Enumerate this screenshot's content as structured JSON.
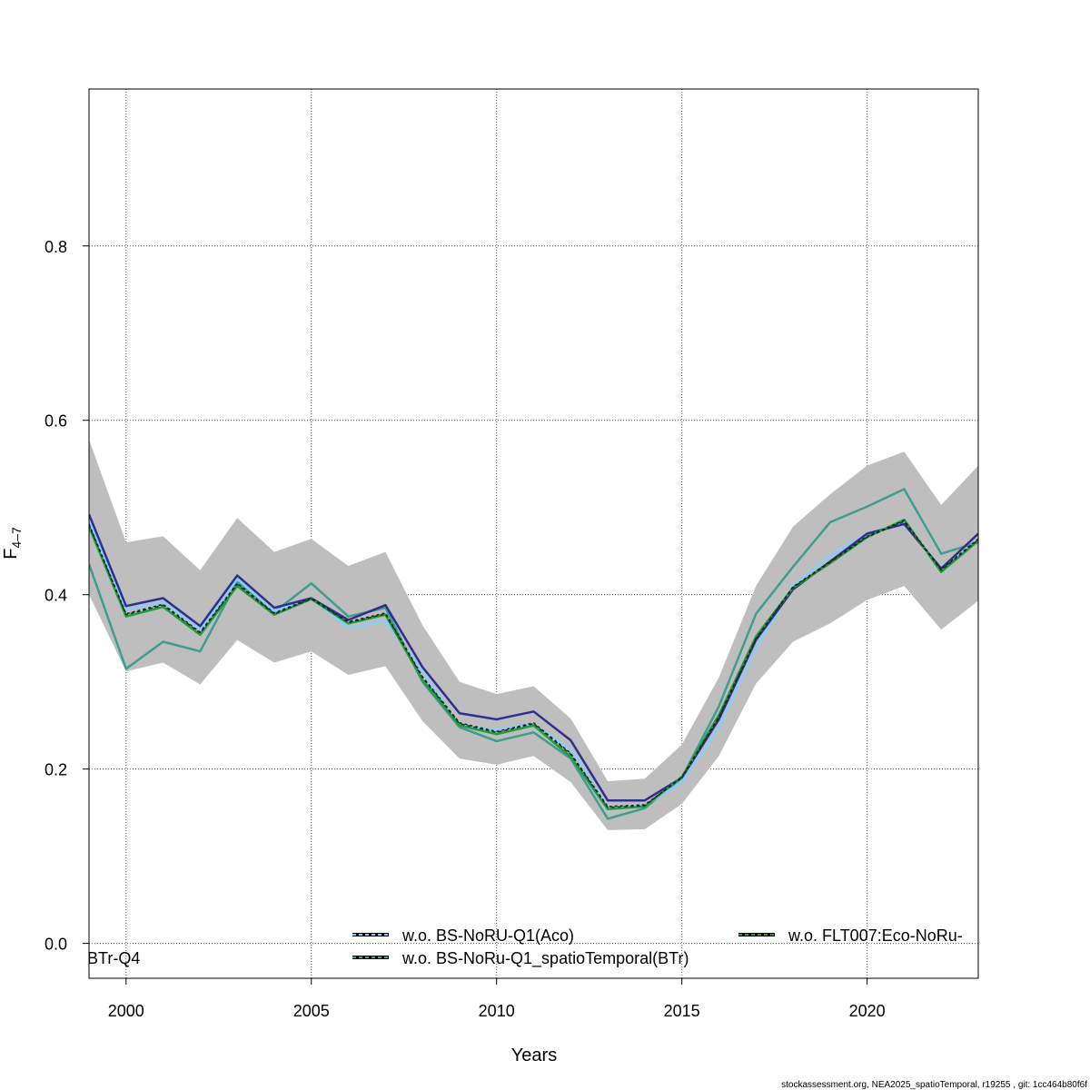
{
  "chart_data": {
    "type": "line",
    "xlabel": "Years",
    "ylabel": "F",
    "ylabel_sub": "4–7",
    "xlim": [
      1999,
      2023
    ],
    "ylim": [
      -0.04,
      0.98
    ],
    "grid": true,
    "x_ticks": [
      2000,
      2005,
      2010,
      2015,
      2020
    ],
    "y_ticks": [
      0.0,
      0.2,
      0.4,
      0.6,
      0.8
    ],
    "y_tick_labels": [
      "0.0",
      "0.2",
      "0.4",
      "0.6",
      "0.8"
    ],
    "x": [
      1999,
      2000,
      2001,
      2002,
      2003,
      2004,
      2005,
      2006,
      2007,
      2008,
      2009,
      2010,
      2011,
      2012,
      2013,
      2014,
      2015,
      2016,
      2017,
      2018,
      2019,
      2020,
      2021,
      2022,
      2023
    ],
    "band": {
      "color": "#bebebe",
      "upper": [
        0.578,
        0.46,
        0.467,
        0.428,
        0.488,
        0.449,
        0.464,
        0.433,
        0.449,
        0.365,
        0.3,
        0.286,
        0.295,
        0.258,
        0.186,
        0.189,
        0.228,
        0.305,
        0.41,
        0.478,
        0.515,
        0.548,
        0.564,
        0.503,
        0.548
      ],
      "lower": [
        0.4,
        0.312,
        0.322,
        0.297,
        0.348,
        0.322,
        0.335,
        0.308,
        0.318,
        0.255,
        0.212,
        0.205,
        0.215,
        0.185,
        0.13,
        0.131,
        0.16,
        0.215,
        0.298,
        0.346,
        0.367,
        0.394,
        0.41,
        0.36,
        0.393
      ]
    },
    "series": [
      {
        "color": "#3d9e8e",
        "dash": "",
        "values": [
          0.435,
          0.315,
          0.346,
          0.335,
          0.415,
          0.38,
          0.413,
          0.375,
          0.385,
          0.3,
          0.248,
          0.232,
          0.242,
          0.212,
          0.143,
          0.155,
          0.19,
          0.272,
          0.378,
          0.432,
          0.483,
          0.501,
          0.521,
          0.447,
          0.46
        ]
      },
      {
        "color": "#87cefa",
        "dash": "",
        "values": [
          0.485,
          0.382,
          0.392,
          0.36,
          0.418,
          0.381,
          0.396,
          0.362,
          0.37,
          0.312,
          0.25,
          0.245,
          0.252,
          0.222,
          0.156,
          0.158,
          0.185,
          0.248,
          0.338,
          0.41,
          0.445,
          0.47,
          0.483,
          0.43,
          0.462
        ]
      },
      {
        "color": "#2e2e8f",
        "dash": "",
        "values": [
          0.492,
          0.387,
          0.396,
          0.364,
          0.422,
          0.385,
          0.396,
          0.371,
          0.388,
          0.317,
          0.264,
          0.257,
          0.266,
          0.233,
          0.164,
          0.164,
          0.19,
          0.257,
          0.348,
          0.406,
          0.438,
          0.47,
          0.481,
          0.43,
          0.47
        ]
      },
      {
        "color": "#1f9e3f",
        "dash": "",
        "values": [
          0.478,
          0.375,
          0.386,
          0.354,
          0.41,
          0.377,
          0.395,
          0.367,
          0.377,
          0.302,
          0.25,
          0.24,
          0.25,
          0.214,
          0.154,
          0.157,
          0.191,
          0.262,
          0.352,
          0.408,
          0.436,
          0.466,
          0.486,
          0.426,
          0.462
        ]
      },
      {
        "color": "#0f3d10",
        "dash": "4,3",
        "values": [
          0.48,
          0.377,
          0.388,
          0.356,
          0.412,
          0.378,
          0.395,
          0.368,
          0.378,
          0.305,
          0.252,
          0.242,
          0.252,
          0.217,
          0.156,
          0.158,
          0.191,
          0.26,
          0.35,
          0.408,
          0.437,
          0.466,
          0.484,
          0.428,
          0.463
        ]
      },
      {
        "color": "#1f1f1f",
        "dash": "3,3",
        "values": [
          0.481,
          0.378,
          0.389,
          0.357,
          0.413,
          0.379,
          0.396,
          0.369,
          0.379,
          0.306,
          0.253,
          0.243,
          0.253,
          0.218,
          0.157,
          0.159,
          0.19,
          0.259,
          0.349,
          0.409,
          0.438,
          0.467,
          0.485,
          0.429,
          0.464
        ]
      }
    ],
    "legend": [
      {
        "label": "w.o. BS-NoRU-Q1(Aco)",
        "color": "#87cefa",
        "dash": "4,3"
      },
      {
        "label": "w.o. BS-NoRu-Q1_spatioTemporal(BTr)",
        "color": "#3d9e8e",
        "dash": "4,3"
      },
      {
        "label": "w.o. FLT007:Eco-NoRu-",
        "color": "#1f9e3f",
        "dash": "4,3"
      },
      {
        "label": "BTr-Q4",
        "color": "",
        "dash": ""
      }
    ]
  },
  "footer": "stockassessment.org, NEA2025_spatioTemporal, r19255 , git: 1cc464b80f6f"
}
